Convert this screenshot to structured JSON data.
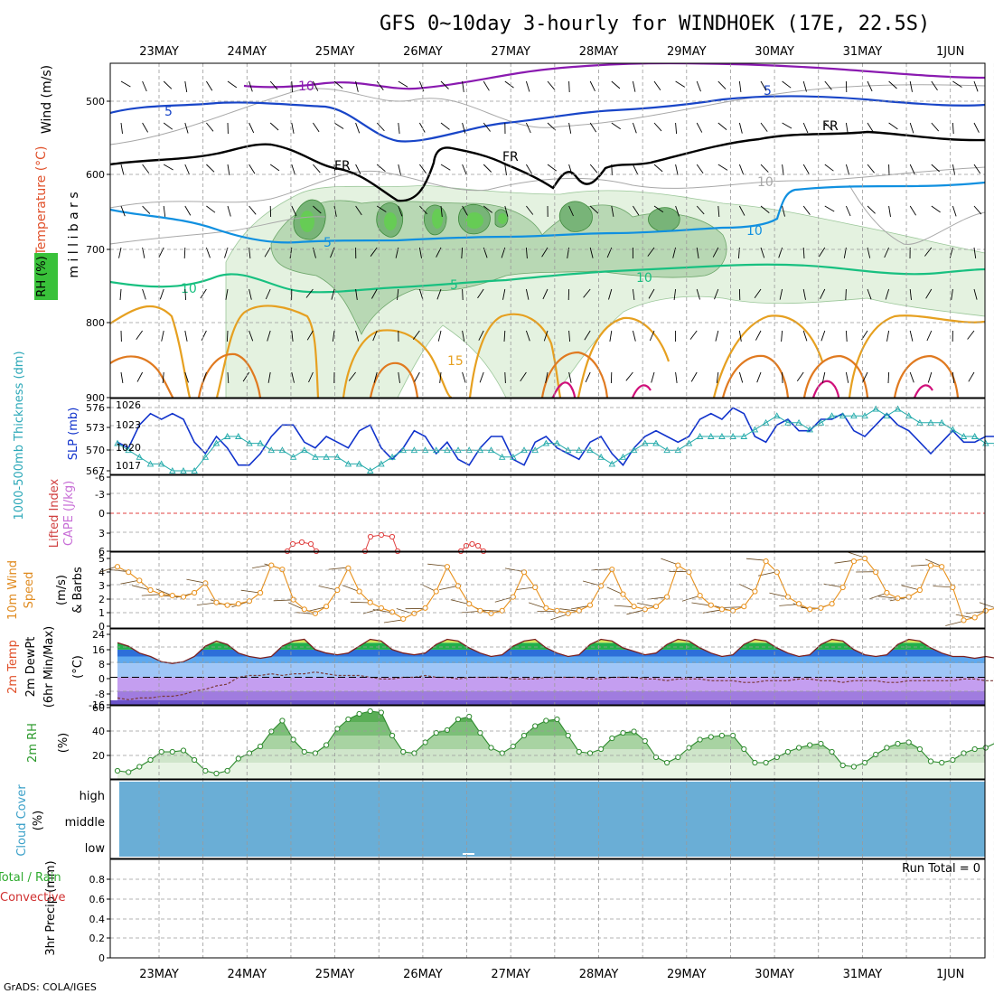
{
  "title": "GFS 0~10day 3-hourly for WINDHOEK (17E, 22.5S)",
  "footer": "GrADS: COLA/IGES",
  "dates": [
    "23MAY",
    "24MAY",
    "25MAY",
    "26MAY",
    "27MAY",
    "28MAY",
    "29MAY",
    "30MAY",
    "31MAY",
    "1JUN"
  ],
  "colors": {
    "slp": "#1133cc",
    "thickness": "#22aaaa",
    "wind": "#e8901a",
    "tmax_fill": "#22aa22",
    "rh_fill": "#66bb66",
    "cloud": "#6aaed6",
    "rh_shade_light": "#e4f2e0",
    "rh_shade_mid": "#b8d8b4",
    "rh_shade_dark": "#78b478"
  },
  "panels": {
    "upper": {
      "ylabel": "m i l l i b a r s",
      "ticks": [
        "500",
        "600",
        "700",
        "800",
        "900"
      ],
      "legend": {
        "rh": "RH (%)",
        "temp": "Temperature (°C)",
        "wind": "Wind (m/s)"
      },
      "contour_labels": [
        "10",
        "5",
        "FR",
        "FR",
        "FR",
        "10",
        "5",
        "5",
        "10",
        "10",
        "15",
        "5",
        "10"
      ]
    },
    "slp": {
      "label_left": "1000-500mb Thickness (dm)",
      "label_right": "SLP (mb)",
      "left_ticks": [
        "576",
        "573",
        "570",
        "567"
      ],
      "right_ticks": [
        "1026",
        "1023",
        "1020",
        "1017"
      ]
    },
    "cape": {
      "label_left": "Lifted Index",
      "label_right": "CAPE (J/kg)",
      "ticks": [
        "-6",
        "-3",
        "0",
        "3",
        "6"
      ]
    },
    "wind10": {
      "label1": "10m Wind",
      "label2": "Speed",
      "label3": "& Barbs",
      "unit": "(m/s)",
      "ticks": [
        "5",
        "4",
        "3",
        "2",
        "1",
        "0"
      ]
    },
    "temp": {
      "label1": "2m Temp",
      "label2": "2m DewPt",
      "label3": "(6hr Min/Max)",
      "unit": "(°C)",
      "ticks": [
        "24",
        "16",
        "8",
        "0",
        "-8",
        "-16"
      ]
    },
    "rh": {
      "label": "2m RH",
      "unit": "(%)",
      "ticks": [
        "60",
        "40",
        "20"
      ]
    },
    "cloud": {
      "label1": "Cloud Cover",
      "unit": "(%)",
      "levels": [
        "high",
        "middle",
        "low"
      ]
    },
    "precip": {
      "label1": "Total / Rain",
      "label2": "Convective",
      "label3": "3hr Precip (mm)",
      "run_total": "Run Total = 0",
      "ticks": [
        "0.8",
        "0.6",
        "0.4",
        "0.2",
        "0"
      ]
    }
  },
  "chart_data": [
    {
      "type": "line",
      "title": "SLP (mb)",
      "x_start": "22MAY 18Z",
      "step_hours": 3,
      "ylim": [
        1016,
        1028
      ],
      "values": [
        1021,
        1020,
        1024,
        1026,
        1025,
        1026,
        1025,
        1021,
        1019,
        1022,
        1020,
        1017,
        1017,
        1019,
        1022,
        1024,
        1024,
        1021,
        1020,
        1022,
        1021,
        1020,
        1023,
        1024,
        1020,
        1018,
        1020,
        1023,
        1022,
        1019,
        1021,
        1018,
        1017,
        1020,
        1022,
        1022,
        1018,
        1017,
        1021,
        1022,
        1020,
        1019,
        1018,
        1021,
        1022,
        1019,
        1017,
        1020,
        1022,
        1023,
        1022,
        1021,
        1022,
        1025,
        1026,
        1025,
        1027,
        1026,
        1022,
        1021,
        1024,
        1025,
        1023,
        1023,
        1025,
        1025,
        1026,
        1023,
        1022,
        1024,
        1026,
        1024,
        1023,
        1021,
        1019,
        1021,
        1023,
        1021,
        1021,
        1022,
        1022
      ]
    },
    {
      "type": "line",
      "title": "1000-500mb Thickness (dm)",
      "ylim": [
        567,
        577
      ],
      "values": [
        571,
        570,
        569,
        568,
        568,
        567,
        567,
        567,
        569,
        571,
        572,
        572,
        571,
        571,
        570,
        570,
        569,
        570,
        569,
        569,
        569,
        568,
        568,
        567,
        568,
        569,
        570,
        570,
        570,
        570,
        570,
        570,
        570,
        570,
        570,
        569,
        569,
        570,
        570,
        571,
        571,
        570,
        570,
        570,
        569,
        568,
        569,
        570,
        571,
        571,
        570,
        570,
        571,
        572,
        572,
        572,
        572,
        572,
        573,
        574,
        575,
        574,
        574,
        573,
        574,
        575,
        575,
        575,
        575,
        576,
        575,
        576,
        575,
        574,
        574,
        574,
        573,
        572,
        572,
        571,
        571
      ]
    },
    {
      "type": "line",
      "title": "10m Wind Speed (m/s)",
      "ylim": [
        0,
        5
      ],
      "values": [
        4.2,
        3.8,
        3.2,
        2.5,
        2.2,
        2.1,
        2.0,
        2.3,
        3.0,
        1.6,
        1.4,
        1.5,
        1.7,
        2.3,
        4.3,
        4.0,
        1.8,
        1.1,
        0.8,
        1.3,
        2.5,
        4.1,
        2.4,
        1.6,
        1.2,
        0.9,
        0.4,
        0.8,
        1.2,
        2.4,
        4.2,
        2.8,
        1.5,
        1.0,
        0.8,
        1.0,
        2.0,
        3.8,
        2.7,
        1.2,
        1.0,
        0.8,
        1.0,
        1.4,
        2.8,
        4.0,
        2.2,
        1.3,
        1.1,
        1.3,
        2.0,
        4.3,
        3.8,
        2.1,
        1.4,
        1.1,
        1.0,
        1.3,
        2.4,
        4.6,
        3.8,
        2.0,
        1.5,
        1.1,
        1.2,
        1.5,
        2.7,
        4.6,
        4.8,
        3.8,
        2.3,
        1.9,
        2.0,
        2.5,
        4.3,
        4.2,
        2.7,
        0.3,
        0.5,
        1.0,
        1.2
      ]
    },
    {
      "type": "area",
      "title": "2m Temp (°C)",
      "ylim": [
        -16,
        28
      ],
      "values": [
        20,
        18,
        14,
        12,
        9,
        8,
        9,
        12,
        18,
        21,
        19,
        14,
        12,
        11,
        12,
        18,
        21,
        22,
        16,
        14,
        13,
        14,
        18,
        22,
        21,
        16,
        14,
        13,
        14,
        19,
        22,
        21,
        17,
        14,
        12,
        13,
        18,
        21,
        22,
        17,
        14,
        12,
        13,
        19,
        22,
        21,
        17,
        15,
        13,
        14,
        19,
        22,
        21,
        17,
        14,
        12,
        13,
        19,
        22,
        21,
        17,
        14,
        12,
        13,
        19,
        22,
        21,
        16,
        13,
        12,
        13,
        19,
        22,
        21,
        17,
        14,
        12,
        12,
        11,
        12,
        11
      ]
    },
    {
      "type": "line",
      "title": "2m DewPt (°C)",
      "ylim": [
        -16,
        28
      ],
      "values": [
        -12,
        -13,
        -12,
        -12,
        -11,
        -11,
        -10,
        -8,
        -7,
        -5,
        -4,
        0,
        1,
        1,
        2,
        1,
        2,
        2,
        3,
        2,
        1,
        1,
        1,
        0,
        -1,
        -1,
        0,
        0,
        1,
        0,
        0,
        -1,
        0,
        0,
        0,
        0,
        -1,
        -1,
        -1,
        0,
        0,
        0,
        0,
        -1,
        -1,
        0,
        0,
        0,
        -1,
        -1,
        -2,
        -1,
        -1,
        -1,
        -2,
        -2,
        -2,
        -3,
        -3,
        -2,
        -2,
        -2,
        -1,
        -1,
        -2,
        -2,
        -3,
        -2,
        -2,
        -2,
        -3,
        -3,
        -2,
        -2,
        -2,
        -2,
        -2,
        -1,
        -1,
        -2,
        -2
      ]
    },
    {
      "type": "area",
      "title": "2m RH (%)",
      "ylim": [
        8,
        62
      ],
      "values": [
        14,
        13,
        17,
        22,
        28,
        28,
        29,
        22,
        14,
        12,
        14,
        23,
        27,
        32,
        43,
        51,
        37,
        28,
        27,
        33,
        45,
        52,
        56,
        58,
        57,
        40,
        28,
        27,
        35,
        42,
        44,
        52,
        54,
        42,
        31,
        27,
        32,
        40,
        47,
        51,
        52,
        40,
        28,
        27,
        30,
        38,
        42,
        43,
        36,
        24,
        20,
        24,
        31,
        37,
        39,
        40,
        40,
        30,
        20,
        20,
        24,
        28,
        31,
        33,
        34,
        28,
        18,
        17,
        20,
        26,
        31,
        34,
        35,
        30,
        21,
        20,
        22,
        27,
        30,
        31,
        35
      ]
    },
    {
      "type": "area",
      "title": "Cloud Cover (%)",
      "values": []
    },
    {
      "type": "bar",
      "title": "3hr Precip (mm)",
      "ylim": [
        0,
        1
      ],
      "values": [],
      "run_total": 0
    }
  ]
}
